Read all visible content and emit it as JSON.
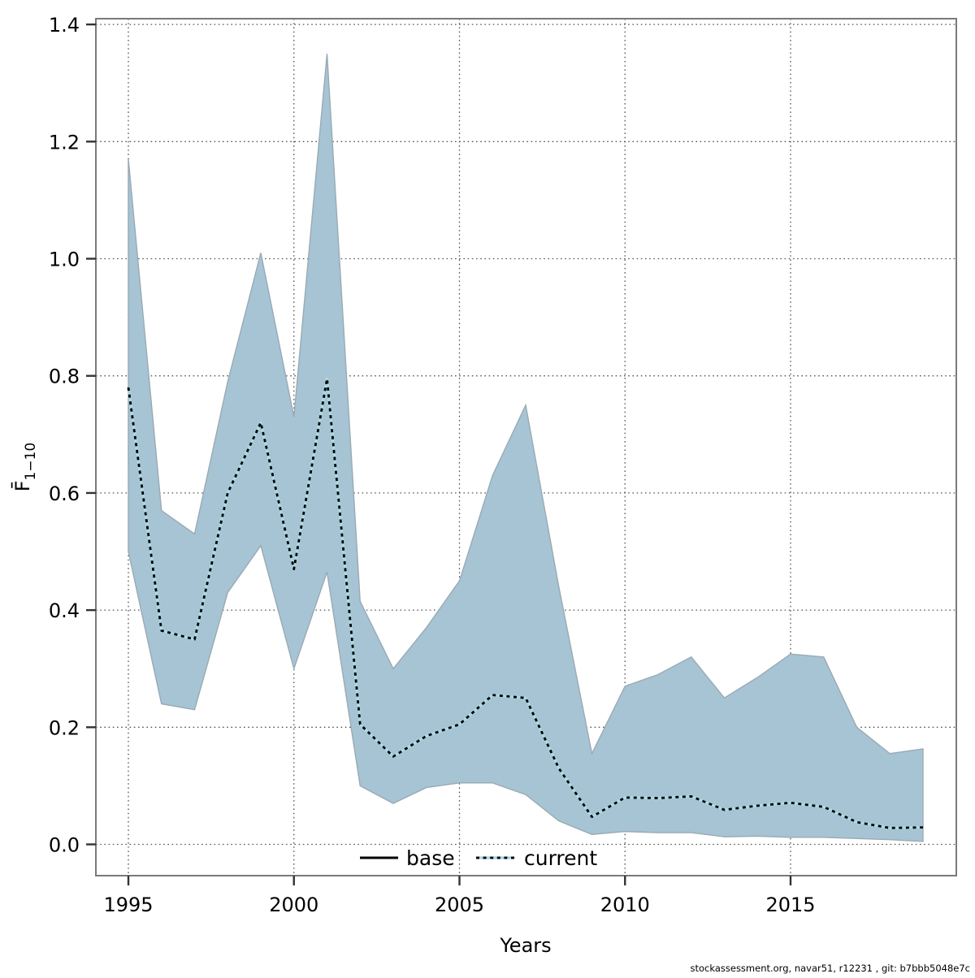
{
  "chart_data": {
    "type": "line-with-ci-band",
    "title": "",
    "xlabel": "Years",
    "ylabel_base": "F̄",
    "ylabel_sub": "1−10",
    "x": [
      1995,
      1996,
      1997,
      1998,
      1999,
      2000,
      2001,
      2002,
      2003,
      2004,
      2005,
      2006,
      2007,
      2008,
      2009,
      2010,
      2011,
      2012,
      2013,
      2014,
      2015,
      2016,
      2017,
      2018,
      2019
    ],
    "series": [
      {
        "name": "base",
        "style": "solid",
        "color": "#add8e6",
        "values": [
          0.78,
          0.365,
          0.35,
          0.6,
          0.72,
          0.47,
          0.795,
          0.205,
          0.15,
          0.185,
          0.205,
          0.255,
          0.25,
          0.13,
          0.047,
          0.08,
          0.079,
          0.082,
          0.059,
          0.066,
          0.071,
          0.064,
          0.038,
          0.028,
          0.029
        ]
      },
      {
        "name": "current",
        "style": "dotted",
        "color": "#000000",
        "values": [
          0.78,
          0.365,
          0.35,
          0.6,
          0.72,
          0.47,
          0.795,
          0.205,
          0.15,
          0.185,
          0.205,
          0.255,
          0.25,
          0.13,
          0.047,
          0.08,
          0.079,
          0.082,
          0.059,
          0.066,
          0.071,
          0.064,
          0.038,
          0.028,
          0.029
        ]
      }
    ],
    "band": {
      "lower": [
        0.5,
        0.24,
        0.23,
        0.43,
        0.51,
        0.3,
        0.465,
        0.1,
        0.07,
        0.097,
        0.105,
        0.105,
        0.085,
        0.04,
        0.017,
        0.022,
        0.02,
        0.02,
        0.013,
        0.014,
        0.012,
        0.012,
        0.01,
        0.008,
        0.005
      ],
      "upper": [
        1.17,
        0.57,
        0.53,
        0.79,
        1.01,
        0.73,
        1.35,
        0.415,
        0.3,
        0.37,
        0.45,
        0.63,
        0.75,
        0.44,
        0.155,
        0.27,
        0.29,
        0.32,
        0.25,
        0.285,
        0.325,
        0.32,
        0.2,
        0.155,
        0.163
      ]
    },
    "x_ticks": {
      "values": [
        1995,
        2000,
        2005,
        2010,
        2015
      ],
      "labels": [
        "1995",
        "2000",
        "2005",
        "2010",
        "2015"
      ]
    },
    "y_ticks": {
      "values": [
        0.0,
        0.2,
        0.4,
        0.6,
        0.8,
        1.0,
        1.2,
        1.4
      ],
      "labels": [
        "0.0",
        "0.2",
        "0.4",
        "0.6",
        "0.8",
        "1.0",
        "1.2",
        "1.4"
      ]
    },
    "xlim": [
      1994.04,
      1999.99
    ],
    "ylim": [
      -0.054,
      1.41
    ],
    "grid": "dotted"
  },
  "legend": {
    "items": [
      {
        "label": "base",
        "swatch": "solid-black-line"
      },
      {
        "label": "current",
        "swatch": "dotted-black-on-lightblue-line"
      }
    ]
  },
  "footer": {
    "text": "stockassessment.org, navar51, r12231 , git: b7bbb5048e7c"
  },
  "colors": {
    "band_fill": "#a6c4d4",
    "band_edge": "#9aaab4",
    "base_line": "#add8e6",
    "current_line": "#000000",
    "grid_line": "#555555",
    "box_line": "#7a7a7a",
    "tick_line": "#333333",
    "text": "#000000",
    "background": "#ffffff"
  }
}
